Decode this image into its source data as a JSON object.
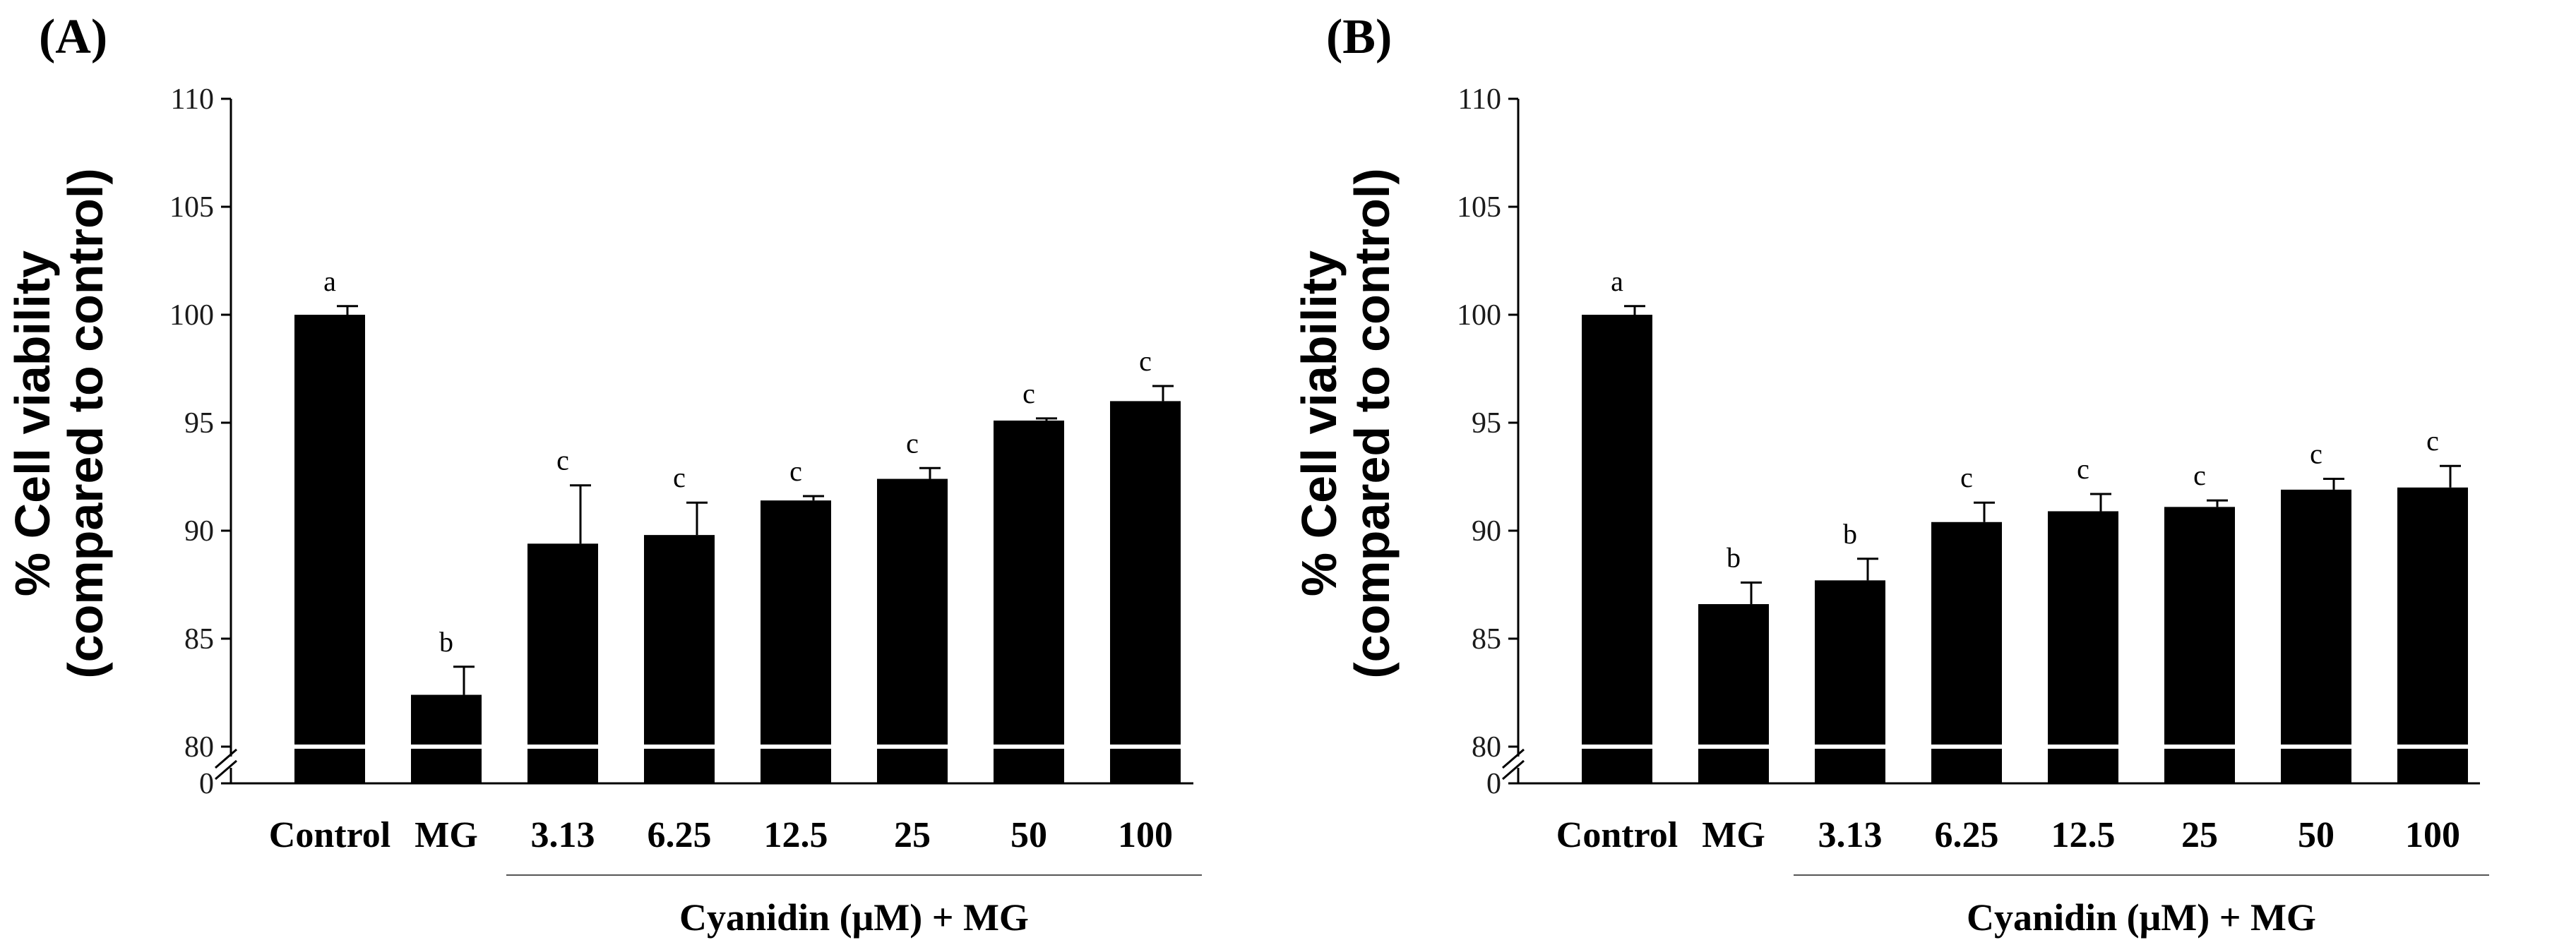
{
  "chart_data": [
    {
      "type": "bar",
      "panel_label": "(A)",
      "ylabel_line1": "% Cell viability",
      "ylabel_line2": "(compared to control)",
      "xlabel_group": "Cyanidin (μM) + MG",
      "categories": [
        "Control",
        "MG",
        "3.13",
        "6.25",
        "12.5",
        "25",
        "50",
        "100"
      ],
      "values": [
        100.0,
        82.4,
        89.4,
        89.8,
        91.4,
        92.4,
        95.1,
        96.0
      ],
      "errors": [
        0.4,
        1.3,
        2.7,
        1.5,
        0.2,
        0.5,
        0.1,
        0.7
      ],
      "significance": [
        "a",
        "b",
        "c",
        "c",
        "c",
        "c",
        "c",
        "c"
      ],
      "yticks": [
        "110",
        "105",
        "100",
        "95",
        "90",
        "85",
        "80",
        "0"
      ],
      "ylim": [
        80,
        110
      ],
      "axis_break": true
    },
    {
      "type": "bar",
      "panel_label": "(B)",
      "ylabel_line1": "% Cell viability",
      "ylabel_line2": "(compared to control)",
      "xlabel_group": "Cyanidin (μM) + MG",
      "categories": [
        "Control",
        "MG",
        "3.13",
        "6.25",
        "12.5",
        "25",
        "50",
        "100"
      ],
      "values": [
        100.0,
        86.6,
        87.7,
        90.4,
        90.9,
        91.1,
        91.9,
        92.0
      ],
      "errors": [
        0.4,
        1.0,
        1.0,
        0.9,
        0.8,
        0.3,
        0.5,
        1.0
      ],
      "significance": [
        "a",
        "b",
        "b",
        "c",
        "c",
        "c",
        "c",
        "c"
      ],
      "yticks": [
        "110",
        "105",
        "100",
        "95",
        "90",
        "85",
        "80",
        "0"
      ],
      "ylim": [
        80,
        110
      ],
      "axis_break": true
    }
  ],
  "colors": {
    "bar": "#000000",
    "break_line": "#ffffff",
    "axis": "#000000",
    "group_line": "#555555"
  }
}
